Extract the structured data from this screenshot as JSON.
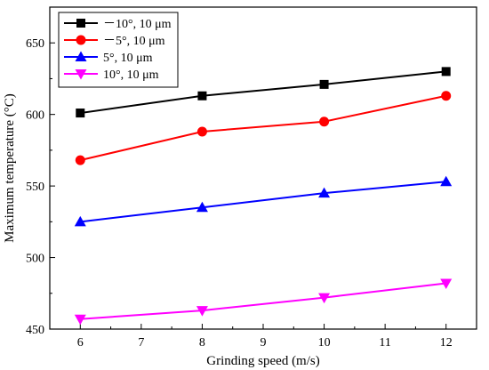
{
  "chart_data": {
    "type": "line",
    "title": "",
    "xlabel": "Grinding speed (m/s)",
    "ylabel": "Maximum temperature (°C)",
    "xlim": [
      5.5,
      12.5
    ],
    "ylim": [
      450,
      675
    ],
    "x_ticks": [
      6,
      7,
      8,
      9,
      10,
      11,
      12
    ],
    "y_ticks": [
      450,
      500,
      550,
      600,
      650
    ],
    "grid": false,
    "legend_position": "top-left",
    "x": [
      6,
      8,
      10,
      12
    ],
    "series": [
      {
        "name": "－10°, 10 μm",
        "color": "#000000",
        "marker": "square",
        "values": [
          601,
          613,
          621,
          630
        ]
      },
      {
        "name": "－5°, 10 μm",
        "color": "#ff0000",
        "marker": "circle",
        "values": [
          568,
          588,
          595,
          613
        ]
      },
      {
        "name": "5°, 10 μm",
        "color": "#0000ff",
        "marker": "triangle-up",
        "values": [
          525,
          535,
          545,
          553
        ]
      },
      {
        "name": "10°, 10 μm",
        "color": "#ff00ff",
        "marker": "triangle-down",
        "values": [
          457,
          463,
          472,
          482
        ]
      }
    ]
  }
}
